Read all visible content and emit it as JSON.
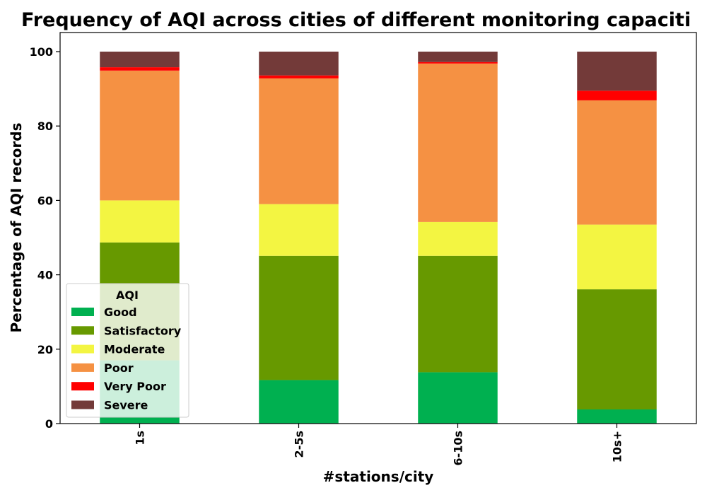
{
  "chart_data": {
    "type": "bar",
    "stacked": true,
    "title": "Frequency of AQI across cities of different monitoring capaciti",
    "xlabel": "#stations/city",
    "ylabel": "Percentage of AQI records",
    "categories": [
      "1s",
      "2-5s",
      "6-10s",
      "10s+"
    ],
    "ylim": [
      0,
      100
    ],
    "yticks": [
      0,
      20,
      40,
      60,
      80,
      100
    ],
    "grid": false,
    "legend": {
      "title": "AQI",
      "placement": "lower-left"
    },
    "series": [
      {
        "name": "Good",
        "color": "#00b050",
        "values": [
          17.0,
          11.7,
          13.8,
          3.8
        ]
      },
      {
        "name": "Satisfactory",
        "color": "#679900",
        "values": [
          31.7,
          33.4,
          31.3,
          32.3
        ]
      },
      {
        "name": "Moderate",
        "color": "#f3f542",
        "values": [
          11.3,
          13.9,
          9.1,
          17.4
        ]
      },
      {
        "name": "Poor",
        "color": "#f59143",
        "values": [
          34.9,
          33.8,
          42.6,
          33.4
        ]
      },
      {
        "name": "Very Poor",
        "color": "#ff0000",
        "values": [
          0.9,
          0.8,
          0.4,
          2.6
        ]
      },
      {
        "name": "Severe",
        "color": "#733a39",
        "values": [
          4.2,
          6.4,
          2.8,
          10.5
        ]
      }
    ]
  }
}
